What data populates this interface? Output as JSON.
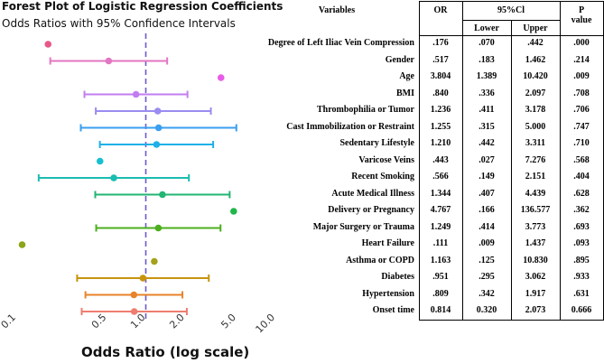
{
  "chart_data": {
    "type": "forest",
    "title": "Forest Plot of Logistic Regression Coefficients",
    "subtitle": "Odds Ratios with 95% Confidence Intervals",
    "xlabel": "Odds Ratio (log scale)",
    "xscale": "log",
    "xlim": [
      0.1,
      10.0
    ],
    "xticks": [
      "0.1",
      "0.5",
      "1.0",
      "2.0",
      "5.0",
      "10.0"
    ],
    "xtick_values": [
      0.1,
      0.5,
      1.0,
      2.0,
      5.0,
      10.0
    ],
    "reference_line": 1.0,
    "reference_color": "#6a5acd",
    "rows": [
      {
        "variable": "Degree of Left Iliac Vein Compression",
        "or": ".176",
        "lower": ".070",
        "upper": ".442",
        "p": ".000",
        "or_v": 0.176,
        "lo_v": 0.07,
        "hi_v": 0.442,
        "color": "#e8578a",
        "show_ci": false
      },
      {
        "variable": "Gender",
        "or": ".517",
        "lower": ".183",
        "upper": "1.462",
        "p": ".214",
        "or_v": 0.517,
        "lo_v": 0.183,
        "hi_v": 1.462,
        "color": "#e377c2",
        "show_ci": true
      },
      {
        "variable": "Age",
        "or": "3.804",
        "lower": "1.389",
        "upper": "10.420",
        "p": ".009",
        "or_v": 3.804,
        "lo_v": 1.389,
        "hi_v": 10.42,
        "color": "#e85ce8",
        "show_ci": false
      },
      {
        "variable": "BMI",
        "or": ".840",
        "lower": ".336",
        "upper": "2.097",
        "p": ".708",
        "or_v": 0.84,
        "lo_v": 0.336,
        "hi_v": 2.097,
        "color": "#c27ef0",
        "show_ci": true
      },
      {
        "variable": "Thrombophilia or Tumor",
        "or": "1.236",
        "lower": ".411",
        "upper": "3.178",
        "p": ".706",
        "or_v": 1.236,
        "lo_v": 0.411,
        "hi_v": 3.178,
        "color": "#9a8cf0",
        "show_ci": true
      },
      {
        "variable": "Cast Immobilization or Restraint",
        "or": "1.255",
        "lower": ".315",
        "upper": "5.000",
        "p": ".747",
        "or_v": 1.255,
        "lo_v": 0.315,
        "hi_v": 5.0,
        "color": "#3a9ff0",
        "show_ci": true
      },
      {
        "variable": "Sedentary Lifestyle",
        "or": "1.210",
        "lower": ".442",
        "upper": "3.311",
        "p": ".710",
        "or_v": 1.21,
        "lo_v": 0.442,
        "hi_v": 3.311,
        "color": "#1fb0e8",
        "show_ci": true
      },
      {
        "variable": "Varicose Veins",
        "or": ".443",
        "lower": ".027",
        "upper": "7.276",
        "p": ".568",
        "or_v": 0.443,
        "lo_v": 0.027,
        "hi_v": 7.276,
        "color": "#17c0d0",
        "show_ci": false
      },
      {
        "variable": "Recent Smoking",
        "or": ".566",
        "lower": ".149",
        "upper": "2.151",
        "p": ".404",
        "or_v": 0.566,
        "lo_v": 0.149,
        "hi_v": 2.151,
        "color": "#1bbcb0",
        "show_ci": true
      },
      {
        "variable": "Acute Medical Illness",
        "or": "1.344",
        "lower": ".407",
        "upper": "4.439",
        "p": ".628",
        "or_v": 1.344,
        "lo_v": 0.407,
        "hi_v": 4.439,
        "color": "#22b573",
        "show_ci": true
      },
      {
        "variable": "Delivery or Pregnancy",
        "or": "4.767",
        "lower": ".166",
        "upper": "136.577",
        "p": ".362",
        "or_v": 4.767,
        "lo_v": 0.166,
        "hi_v": 136.577,
        "color": "#20b64a",
        "show_ci": false
      },
      {
        "variable": "Major Surgery or Trauma",
        "or": "1.249",
        "lower": ".414",
        "upper": "3.773",
        "p": ".693",
        "or_v": 1.249,
        "lo_v": 0.414,
        "hi_v": 3.773,
        "color": "#4caf1e",
        "show_ci": true
      },
      {
        "variable": "Heart Failure",
        "or": ".111",
        "lower": ".009",
        "upper": "1.437",
        "p": ".093",
        "or_v": 0.111,
        "lo_v": 0.009,
        "hi_v": 1.437,
        "color": "#8aa51a",
        "show_ci": false
      },
      {
        "variable": "Asthma or COPD",
        "or": "1.163",
        "lower": ".125",
        "upper": "10.830",
        "p": ".895",
        "or_v": 1.163,
        "lo_v": 0.125,
        "hi_v": 10.83,
        "color": "#a4a21a",
        "show_ci": false
      },
      {
        "variable": "Diabetes",
        "or": ".951",
        "lower": ".295",
        "upper": "3.062",
        "p": ".933",
        "or_v": 0.951,
        "lo_v": 0.295,
        "hi_v": 3.062,
        "color": "#c8940f",
        "show_ci": true
      },
      {
        "variable": "Hypertension",
        "or": ".809",
        "lower": ".342",
        "upper": "1.917",
        "p": ".631",
        "or_v": 0.809,
        "lo_v": 0.342,
        "hi_v": 1.917,
        "color": "#e8832a",
        "show_ci": true
      },
      {
        "variable": "Onset time",
        "or": "0.814",
        "lower": "0.320",
        "upper": "2.073",
        "p": "0.666",
        "or_v": 0.814,
        "lo_v": 0.32,
        "hi_v": 2.073,
        "color": "#ee7c70",
        "show_ci": true
      }
    ]
  },
  "table": {
    "header_variables": "Variables",
    "header_or": "OR",
    "header_ci": "95%Cl",
    "header_lower": "Lower",
    "header_upper": "Upper",
    "header_p": "P",
    "header_p2": "value"
  }
}
